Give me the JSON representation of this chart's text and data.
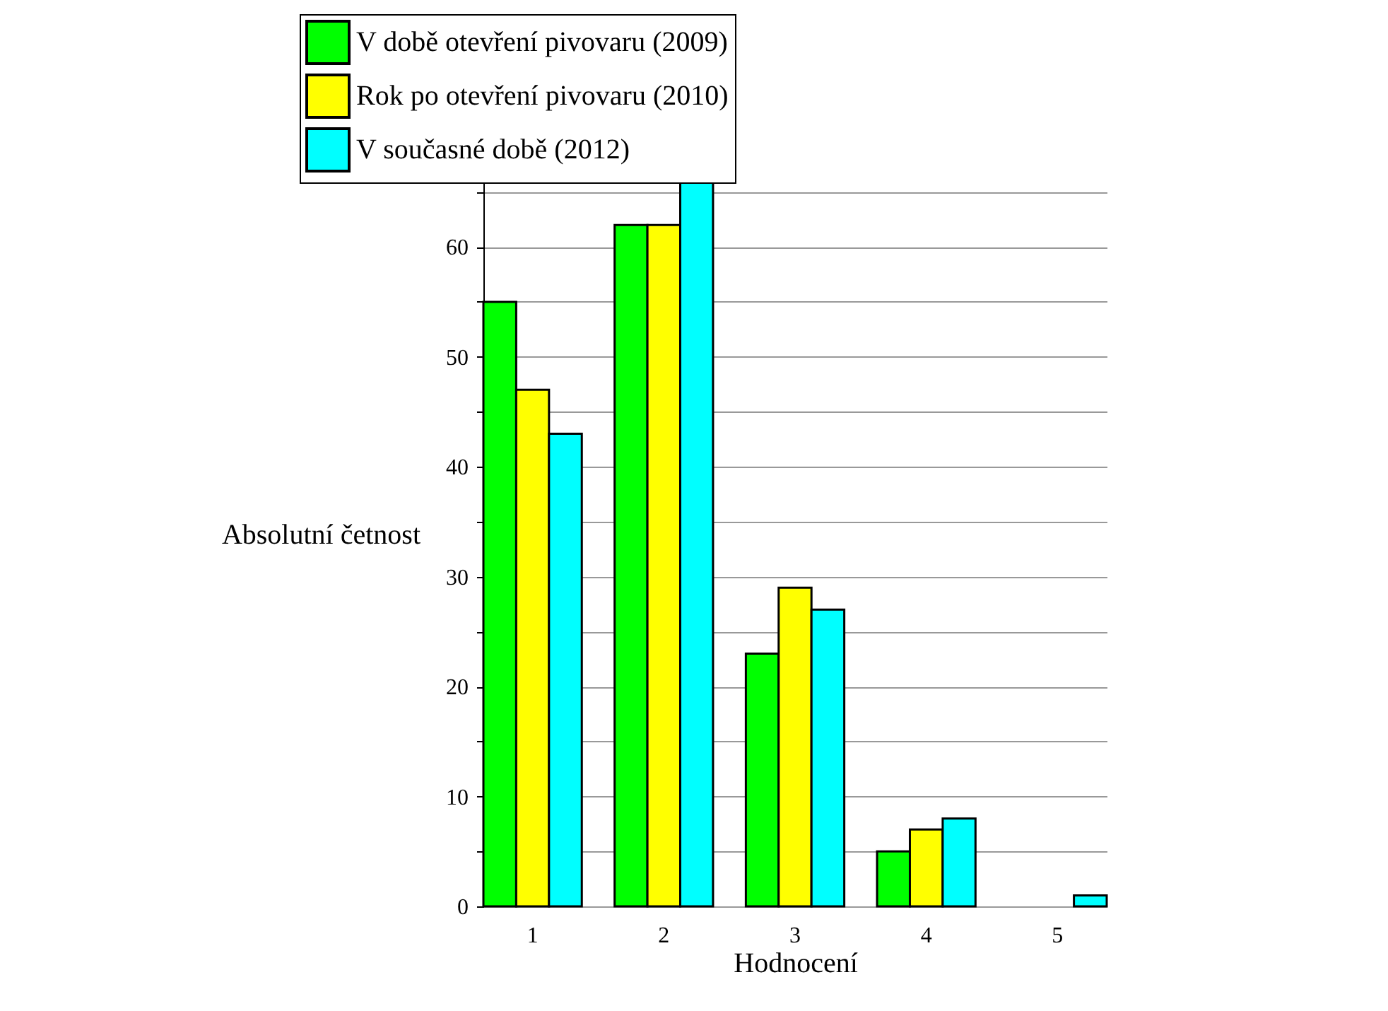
{
  "chart_data": {
    "type": "bar",
    "xlabel": "Hodnocení",
    "ylabel": "Absolutní četnost",
    "categories": [
      "1",
      "2",
      "3",
      "4",
      "5"
    ],
    "series": [
      {
        "name": "V době otevření pivovaru (2009)",
        "color": "#00ff00",
        "values": [
          55,
          62,
          23,
          5,
          0
        ]
      },
      {
        "name": "Rok po otevření pivovaru (2010)",
        "color": "#ffff00",
        "values": [
          47,
          62,
          29,
          7,
          0
        ]
      },
      {
        "name": "V současné době (2012)",
        "color": "#00ffff",
        "values": [
          43,
          66,
          27,
          8,
          1
        ]
      }
    ],
    "ylim": [
      0,
      66
    ],
    "yticks": [
      0,
      {
        "value": 5,
        "label": null
      },
      10,
      {
        "value": 15,
        "label": null
      },
      20,
      {
        "value": 25,
        "label": null
      },
      30,
      {
        "value": 35,
        "label": null
      },
      40,
      {
        "value": 45,
        "label": null
      },
      50,
      {
        "value": 55,
        "label": null
      },
      60,
      {
        "value": 65,
        "label": null
      }
    ],
    "grid": "y",
    "legend": "top"
  }
}
